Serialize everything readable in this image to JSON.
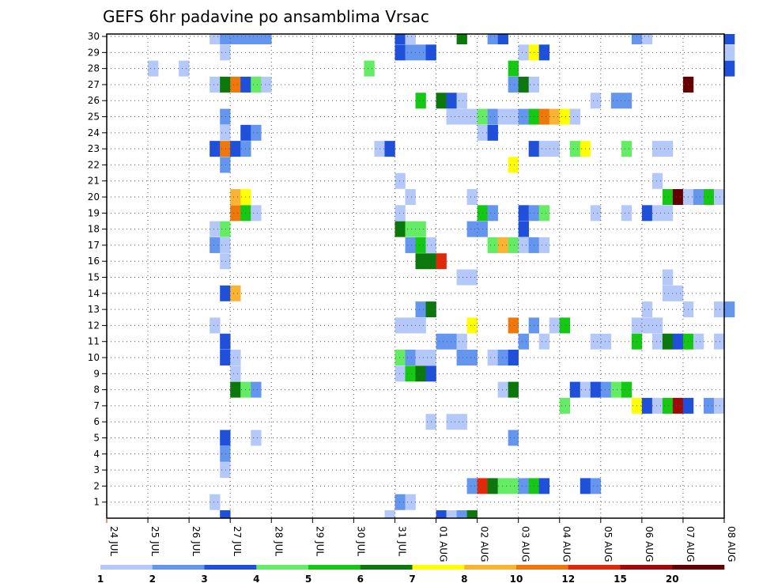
{
  "chart_data": {
    "type": "heatmap",
    "title": "GEFS 6hr padavine po ansamblima Vrsac",
    "xlabel": "",
    "ylabel": "",
    "x_tick_labels": [
      "24 JUL",
      "25 JUL",
      "26 JUL",
      "27 JUL",
      "28 JUL",
      "29 JUL",
      "30 JUL",
      "31 JUL",
      "01 AUG",
      "02 AUG",
      "03 AUG",
      "04 AUG",
      "05 AUG",
      "06 AUG",
      "07 AUG",
      "08 AUG"
    ],
    "x_range_days": [
      0,
      15
    ],
    "time_step_hours": 6,
    "y_tick_labels": [
      "1",
      "2",
      "3",
      "4",
      "5",
      "6",
      "7",
      "8",
      "9",
      "10",
      "11",
      "12",
      "13",
      "14",
      "15",
      "16",
      "17",
      "18",
      "19",
      "20",
      "21",
      "22",
      "23",
      "24",
      "25",
      "26",
      "27",
      "28",
      "29",
      "30"
    ],
    "y_range": [
      0,
      30
    ],
    "grid": true,
    "colorbar": {
      "labels": [
        "1",
        "2",
        "3",
        "4",
        "5",
        "6",
        "7",
        "8",
        "10",
        "12",
        "15",
        "20"
      ],
      "colors": [
        "#b4c8fa",
        "#6496f0",
        "#1e50dc",
        "#64ec64",
        "#14c814",
        "#0a780a",
        "#ffff00",
        "#fab432",
        "#f0780a",
        "#e0280a",
        "#a00a0a",
        "#640000"
      ]
    },
    "cell_levels_note": "level index: 1=1-2, 2=2-3, 3=3-4, 4=4-5, 5=5-6, 6=6-7, 7=7-8, 8=8-10, 9=10-12, 10=12-15, 11=15-20, 12=>20 mm",
    "members": [
      {
        "member": 30,
        "cells": [
          [
            10,
            1
          ],
          [
            11,
            2
          ],
          [
            12,
            2
          ],
          [
            13,
            2
          ],
          [
            14,
            2
          ],
          [
            15,
            2
          ],
          [
            28,
            3
          ],
          [
            29,
            1
          ],
          [
            34,
            6
          ],
          [
            37,
            2
          ],
          [
            38,
            3
          ],
          [
            51,
            2
          ],
          [
            52,
            1
          ],
          [
            60,
            3
          ]
        ]
      },
      {
        "member": 29,
        "cells": [
          [
            11,
            1
          ],
          [
            28,
            3
          ],
          [
            29,
            2
          ],
          [
            30,
            2
          ],
          [
            31,
            3
          ],
          [
            40,
            1
          ],
          [
            41,
            7
          ],
          [
            42,
            3
          ],
          [
            60,
            1
          ]
        ]
      },
      {
        "member": 28,
        "cells": [
          [
            4,
            1
          ],
          [
            7,
            1
          ],
          [
            25,
            4
          ],
          [
            39,
            5
          ],
          [
            60,
            3
          ]
        ]
      },
      {
        "member": 27,
        "cells": [
          [
            10,
            1
          ],
          [
            11,
            6
          ],
          [
            12,
            9
          ],
          [
            13,
            3
          ],
          [
            14,
            4
          ],
          [
            15,
            1
          ],
          [
            39,
            2
          ],
          [
            40,
            6
          ],
          [
            41,
            1
          ],
          [
            56,
            12
          ]
        ]
      },
      {
        "member": 26,
        "cells": [
          [
            30,
            5
          ],
          [
            32,
            6
          ],
          [
            33,
            3
          ],
          [
            34,
            1
          ],
          [
            47,
            1
          ],
          [
            49,
            2
          ],
          [
            50,
            2
          ]
        ]
      },
      {
        "member": 25,
        "cells": [
          [
            11,
            2
          ],
          [
            33,
            1
          ],
          [
            34,
            1
          ],
          [
            35,
            1
          ],
          [
            36,
            4
          ],
          [
            37,
            2
          ],
          [
            38,
            1
          ],
          [
            39,
            1
          ],
          [
            40,
            2
          ],
          [
            41,
            5
          ],
          [
            42,
            9
          ],
          [
            43,
            8
          ],
          [
            44,
            7
          ],
          [
            45,
            1
          ]
        ]
      },
      {
        "member": 24,
        "cells": [
          [
            11,
            1
          ],
          [
            13,
            3
          ],
          [
            14,
            2
          ],
          [
            36,
            1
          ],
          [
            37,
            3
          ]
        ]
      },
      {
        "member": 23,
        "cells": [
          [
            10,
            3
          ],
          [
            11,
            9
          ],
          [
            12,
            3
          ],
          [
            13,
            2
          ],
          [
            26,
            1
          ],
          [
            27,
            3
          ],
          [
            41,
            3
          ],
          [
            42,
            1
          ],
          [
            43,
            1
          ],
          [
            45,
            4
          ],
          [
            46,
            7
          ],
          [
            50,
            4
          ],
          [
            53,
            1
          ],
          [
            54,
            1
          ]
        ]
      },
      {
        "member": 22,
        "cells": [
          [
            11,
            2
          ],
          [
            39,
            7
          ]
        ]
      },
      {
        "member": 21,
        "cells": [
          [
            28,
            1
          ],
          [
            53,
            1
          ]
        ]
      },
      {
        "member": 20,
        "cells": [
          [
            12,
            8
          ],
          [
            13,
            7
          ],
          [
            29,
            1
          ],
          [
            35,
            1
          ],
          [
            54,
            5
          ],
          [
            55,
            12
          ],
          [
            56,
            1
          ],
          [
            57,
            2
          ],
          [
            58,
            5
          ],
          [
            59,
            1
          ]
        ]
      },
      {
        "member": 19,
        "cells": [
          [
            12,
            9
          ],
          [
            13,
            5
          ],
          [
            14,
            1
          ],
          [
            28,
            1
          ],
          [
            36,
            5
          ],
          [
            37,
            2
          ],
          [
            40,
            3
          ],
          [
            41,
            2
          ],
          [
            42,
            4
          ],
          [
            47,
            1
          ],
          [
            50,
            1
          ],
          [
            52,
            3
          ],
          [
            53,
            1
          ],
          [
            54,
            1
          ]
        ]
      },
      {
        "member": 18,
        "cells": [
          [
            10,
            1
          ],
          [
            11,
            4
          ],
          [
            28,
            6
          ],
          [
            29,
            4
          ],
          [
            30,
            4
          ],
          [
            35,
            2
          ],
          [
            36,
            2
          ],
          [
            40,
            3
          ]
        ]
      },
      {
        "member": 17,
        "cells": [
          [
            10,
            2
          ],
          [
            11,
            1
          ],
          [
            29,
            2
          ],
          [
            30,
            5
          ],
          [
            31,
            1
          ],
          [
            37,
            4
          ],
          [
            38,
            8
          ],
          [
            39,
            4
          ],
          [
            40,
            1
          ],
          [
            41,
            2
          ],
          [
            42,
            1
          ]
        ]
      },
      {
        "member": 16,
        "cells": [
          [
            11,
            1
          ],
          [
            30,
            6
          ],
          [
            31,
            6
          ],
          [
            32,
            10
          ]
        ]
      },
      {
        "member": 15,
        "cells": [
          [
            34,
            1
          ],
          [
            35,
            1
          ],
          [
            54,
            1
          ]
        ]
      },
      {
        "member": 14,
        "cells": [
          [
            11,
            3
          ],
          [
            12,
            8
          ],
          [
            54,
            1
          ],
          [
            55,
            1
          ]
        ]
      },
      {
        "member": 13,
        "cells": [
          [
            30,
            2
          ],
          [
            31,
            6
          ],
          [
            52,
            1
          ],
          [
            56,
            1
          ],
          [
            59,
            1
          ],
          [
            60,
            2
          ]
        ]
      },
      {
        "member": 12,
        "cells": [
          [
            10,
            1
          ],
          [
            28,
            1
          ],
          [
            29,
            1
          ],
          [
            30,
            1
          ],
          [
            35,
            7
          ],
          [
            39,
            9
          ],
          [
            41,
            2
          ],
          [
            43,
            1
          ],
          [
            44,
            5
          ],
          [
            51,
            1
          ],
          [
            52,
            1
          ],
          [
            53,
            1
          ]
        ]
      },
      {
        "member": 11,
        "cells": [
          [
            11,
            3
          ],
          [
            32,
            2
          ],
          [
            33,
            2
          ],
          [
            34,
            1
          ],
          [
            40,
            2
          ],
          [
            42,
            1
          ],
          [
            47,
            1
          ],
          [
            48,
            1
          ],
          [
            51,
            5
          ],
          [
            53,
            1
          ],
          [
            54,
            6
          ],
          [
            55,
            3
          ],
          [
            56,
            5
          ],
          [
            57,
            1
          ],
          [
            59,
            1
          ]
        ]
      },
      {
        "member": 10,
        "cells": [
          [
            11,
            3
          ],
          [
            12,
            1
          ],
          [
            28,
            4
          ],
          [
            29,
            2
          ],
          [
            30,
            1
          ],
          [
            31,
            1
          ],
          [
            34,
            2
          ],
          [
            35,
            2
          ],
          [
            37,
            1
          ],
          [
            38,
            2
          ],
          [
            39,
            3
          ]
        ]
      },
      {
        "member": 9,
        "cells": [
          [
            12,
            1
          ],
          [
            28,
            1
          ],
          [
            29,
            5
          ],
          [
            30,
            6
          ],
          [
            31,
            3
          ]
        ]
      },
      {
        "member": 8,
        "cells": [
          [
            12,
            6
          ],
          [
            13,
            4
          ],
          [
            14,
            2
          ],
          [
            38,
            1
          ],
          [
            39,
            6
          ],
          [
            45,
            3
          ],
          [
            46,
            1
          ],
          [
            47,
            3
          ],
          [
            48,
            2
          ],
          [
            49,
            4
          ],
          [
            50,
            5
          ]
        ]
      },
      {
        "member": 7,
        "cells": [
          [
            44,
            4
          ],
          [
            51,
            7
          ],
          [
            52,
            3
          ],
          [
            53,
            1
          ],
          [
            54,
            5
          ],
          [
            55,
            11
          ],
          [
            56,
            3
          ],
          [
            58,
            2
          ],
          [
            59,
            1
          ]
        ]
      },
      {
        "member": 6,
        "cells": [
          [
            31,
            1
          ],
          [
            33,
            1
          ],
          [
            34,
            1
          ]
        ]
      },
      {
        "member": 5,
        "cells": [
          [
            11,
            3
          ],
          [
            14,
            1
          ],
          [
            39,
            2
          ]
        ]
      },
      {
        "member": 4,
        "cells": [
          [
            11,
            2
          ]
        ]
      },
      {
        "member": 3,
        "cells": [
          [
            11,
            1
          ]
        ]
      },
      {
        "member": 2,
        "cells": [
          [
            35,
            2
          ],
          [
            36,
            10
          ],
          [
            37,
            6
          ],
          [
            38,
            4
          ],
          [
            39,
            4
          ],
          [
            40,
            2
          ],
          [
            41,
            5
          ],
          [
            42,
            3
          ],
          [
            46,
            3
          ],
          [
            47,
            2
          ]
        ]
      },
      {
        "member": 1,
        "cells": [
          [
            10,
            1
          ],
          [
            28,
            2
          ],
          [
            29,
            1
          ]
        ]
      },
      {
        "member": 0,
        "cells": [
          [
            11,
            3
          ],
          [
            27,
            1
          ],
          [
            32,
            3
          ],
          [
            33,
            1
          ],
          [
            34,
            2
          ],
          [
            35,
            6
          ]
        ]
      }
    ]
  }
}
